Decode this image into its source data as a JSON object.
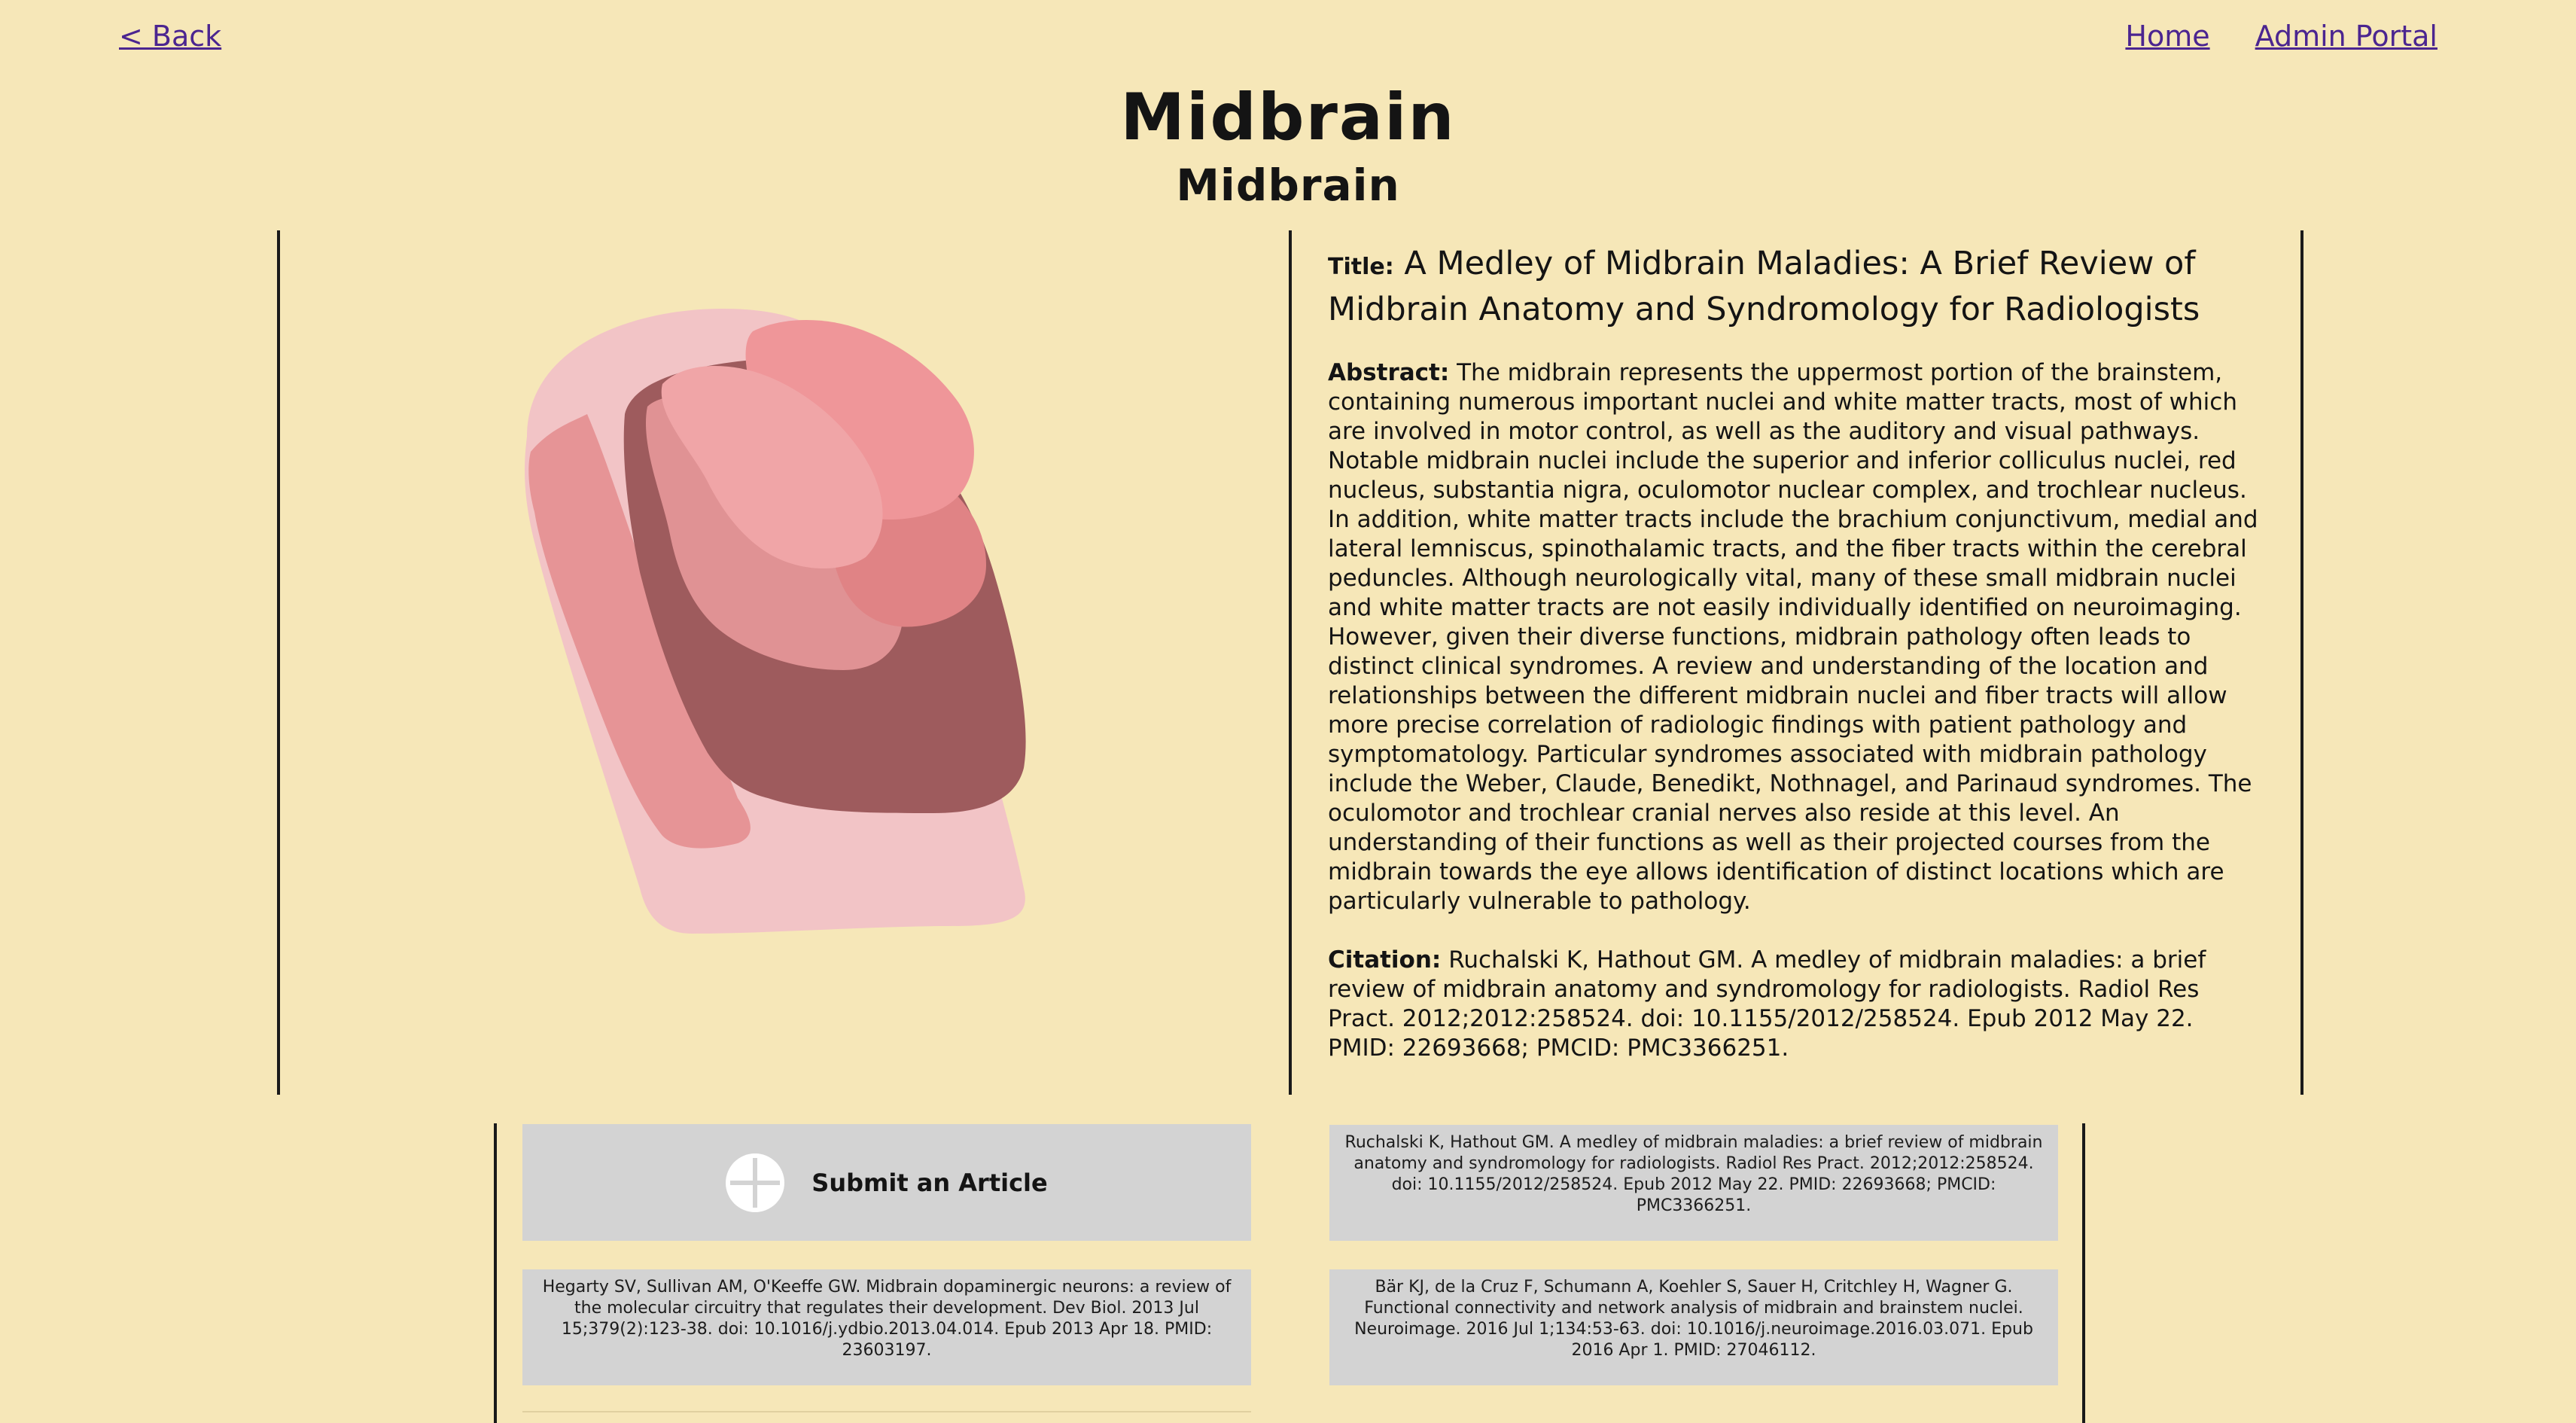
{
  "nav": {
    "back_label": "< Back",
    "home_label": "Home",
    "admin_label": "Admin Portal"
  },
  "header": {
    "title": "Midbrain",
    "subtitle": "Midbrain"
  },
  "illustration": {
    "icon": "midbrain-illustration",
    "colors": {
      "outer": "#f2c4c6",
      "core": "#9e5b5d",
      "left_lobe": "#e69496",
      "upper_left": "#f0a5a7",
      "upper_right": "#ef9699",
      "mid_right": "#e08385",
      "mid_pink": "#e09294"
    }
  },
  "article": {
    "title_label": "Title:",
    "title": "A Medley of Midbrain Maladies: A Brief Review of Midbrain Anatomy and Syndromology for Radiologists",
    "abstract_label": "Abstract:",
    "abstract": "The midbrain represents the uppermost portion of the brainstem, containing numerous important nuclei and white matter tracts, most of which are involved in motor control, as well as the auditory and visual pathways. Notable midbrain nuclei include the superior and inferior colliculus nuclei, red nucleus, substantia nigra, oculomotor nuclear complex, and trochlear nucleus. In addition, white matter tracts include the brachium conjunctivum, medial and lateral lemniscus, spinothalamic tracts, and the fiber tracts within the cerebral peduncles. Although neurologically vital, many of these small midbrain nuclei and white matter tracts are not easily individually identified on neuroimaging. However, given their diverse functions, midbrain pathology often leads to distinct clinical syndromes. A review and understanding of the location and relationships between the different midbrain nuclei and fiber tracts will allow more precise correlation of radiologic findings with patient pathology and symptomatology. Particular syndromes associated with midbrain pathology include the Weber, Claude, Benedikt, Nothnagel, and Parinaud syndromes. The oculomotor and trochlear cranial nerves also reside at this level. An understanding of their functions as well as their projected courses from the midbrain towards the eye allows identification of distinct locations which are particularly vulnerable to pathology.",
    "citation_label": "Citation:",
    "citation": "Ruchalski K, Hathout GM. A medley of midbrain maladies: a brief review of midbrain anatomy and syndromology for radiologists. Radiol Res Pract. 2012;2012:258524. doi: 10.1155/2012/258524. Epub 2012 May 22. PMID: 22693668; PMCID: PMC3366251."
  },
  "submit": {
    "label": "Submit an Article",
    "icon": "plus-circle-icon"
  },
  "references": [
    "Ruchalski K, Hathout GM. A medley of midbrain maladies: a brief review of midbrain anatomy and syndromology for radiologists. Radiol Res Pract. 2012;2012:258524. doi: 10.1155/2012/258524. Epub 2012 May 22. PMID: 22693668; PMCID: PMC3366251.",
    "Hegarty SV, Sullivan AM, O'Keeffe GW. Midbrain dopaminergic neurons: a review of the molecular circuitry that regulates their development. Dev Biol. 2013 Jul 15;379(2):123-38. doi: 10.1016/j.ydbio.2013.04.014. Epub 2013 Apr 18. PMID: 23603197.",
    "Bär KJ, de la Cruz F, Schumann A, Koehler S, Sauer H, Critchley H, Wagner G. Functional connectivity and network analysis of midbrain and brainstem nuclei. Neuroimage. 2016 Jul 1;134:53-63. doi: 10.1016/j.neuroimage.2016.03.071. Epub 2016 Apr 1. PMID: 27046112."
  ]
}
